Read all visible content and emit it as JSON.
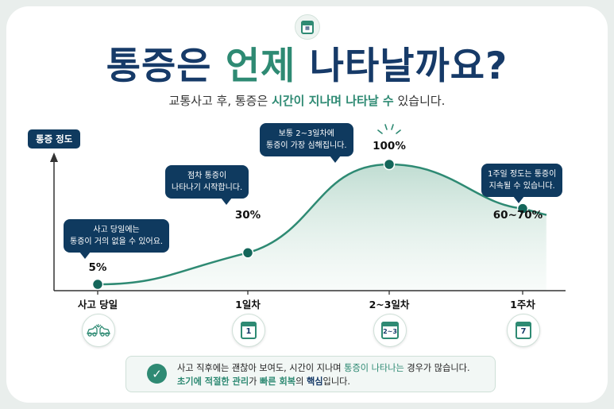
{
  "title": {
    "part1": "통증은 ",
    "accent": "언제",
    "part2": " 나타날까요?"
  },
  "subtitle": {
    "part1": "교통사고 후, 통증은 ",
    "accent": "시간이 지나며 나타날 수",
    "part2": " 있습니다."
  },
  "icons": {
    "top": "calendar-icon",
    "crash": "car-crash-icon",
    "check": "check-icon"
  },
  "colors": {
    "navy": "#0f3a5f",
    "teal": "#2e8a73"
  },
  "chart_data": {
    "type": "area",
    "ylabel": "통증 정도",
    "categories": [
      "사고 당일",
      "1일차",
      "2~3일차",
      "1주차"
    ],
    "points": [
      {
        "x": "사고 당일",
        "y": 5,
        "label": "5%",
        "note_lines": [
          "사고 당일에는",
          "통증이 거의 없을 수 있어요."
        ]
      },
      {
        "x": "1일차",
        "y": 30,
        "label": "30%",
        "note_lines": [
          "점차 통증이",
          "나타나기 시작합니다."
        ]
      },
      {
        "x": "2~3일차",
        "y": 100,
        "label": "100%",
        "note_lines": [
          "보통 2~3일차에",
          "통증이 가장 심해집니다."
        ]
      },
      {
        "x": "1주차",
        "y": 65,
        "label": "60~70%",
        "note_lines": [
          "1주일 정도는 통증이",
          "지속될 수 있습니다."
        ]
      }
    ],
    "calendar_numbers": [
      "1",
      "2~3",
      "7"
    ],
    "ylim": [
      0,
      100
    ],
    "grid": false
  },
  "note": {
    "line1_a": "사고 직후에는 괜찮아 보여도, 시간이 지나며 ",
    "line1_hl": "통증이 나타나는",
    "line1_b": " 경우가 많습니다.",
    "line2_hl1": "초기에 적절한 관리",
    "line2_a": "가 ",
    "line2_hl2": "빠른 회복",
    "line2_b": "의 ",
    "line2_dk": "핵심",
    "line2_c": "입니다."
  }
}
